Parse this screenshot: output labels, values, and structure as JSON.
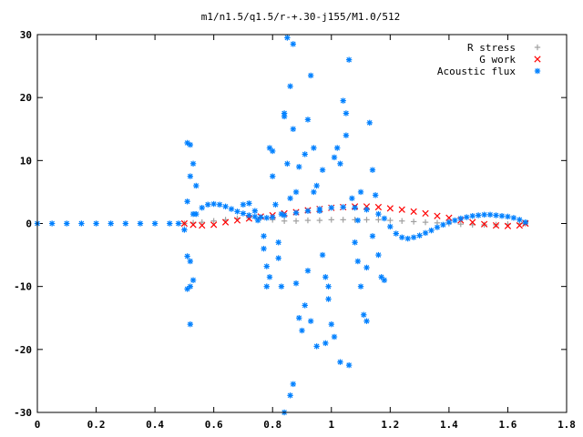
{
  "chart_data": {
    "type": "scatter",
    "title": "m1/n1.5/q1.5/r-+.30-j155/M1.0/512",
    "xlabel": "",
    "ylabel": "",
    "xlim": [
      0,
      1.8
    ],
    "ylim": [
      -30,
      30
    ],
    "x_ticks": [
      0,
      0.2,
      0.4,
      0.6,
      0.8,
      1,
      1.2,
      1.4,
      1.6,
      1.8
    ],
    "y_ticks": [
      -30,
      -20,
      -10,
      0,
      10,
      20,
      30
    ],
    "x_tick_labels": [
      "0",
      "0.2",
      "0.4",
      "0.6",
      "0.8",
      "1",
      "1.2",
      "1.4",
      "1.6",
      "1.8"
    ],
    "y_tick_labels": [
      "-30",
      "-20",
      "-10",
      "0",
      "10",
      "20",
      "30"
    ],
    "legend_position": "top-right",
    "series": [
      {
        "name": "R stress",
        "color": "#a0a0a0",
        "marker": "plus",
        "points": [
          [
            0.5,
            0.0
          ],
          [
            0.53,
            0.1
          ],
          [
            0.56,
            0.2
          ],
          [
            0.6,
            0.4
          ],
          [
            0.64,
            0.6
          ],
          [
            0.68,
            0.8
          ],
          [
            0.72,
            0.9
          ],
          [
            0.76,
            0.9
          ],
          [
            0.8,
            0.6
          ],
          [
            0.84,
            0.4
          ],
          [
            0.88,
            0.4
          ],
          [
            0.92,
            0.5
          ],
          [
            0.96,
            0.5
          ],
          [
            1.0,
            0.6
          ],
          [
            1.04,
            0.6
          ],
          [
            1.08,
            0.6
          ],
          [
            1.12,
            0.6
          ],
          [
            1.16,
            0.6
          ],
          [
            1.2,
            0.5
          ],
          [
            1.24,
            0.4
          ],
          [
            1.28,
            0.3
          ],
          [
            1.32,
            0.2
          ],
          [
            1.36,
            0.1
          ],
          [
            1.4,
            0.0
          ],
          [
            1.44,
            -0.1
          ],
          [
            1.48,
            -0.2
          ],
          [
            1.52,
            -0.2
          ],
          [
            1.56,
            -0.2
          ],
          [
            1.6,
            -0.1
          ],
          [
            1.64,
            0.0
          ],
          [
            1.66,
            0.0
          ]
        ]
      },
      {
        "name": "G work",
        "color": "#ff0000",
        "marker": "cross",
        "points": [
          [
            0.5,
            0.0
          ],
          [
            0.53,
            -0.2
          ],
          [
            0.56,
            -0.3
          ],
          [
            0.6,
            -0.2
          ],
          [
            0.64,
            0.2
          ],
          [
            0.68,
            0.5
          ],
          [
            0.72,
            0.8
          ],
          [
            0.76,
            1.1
          ],
          [
            0.8,
            1.3
          ],
          [
            0.84,
            1.6
          ],
          [
            0.88,
            1.8
          ],
          [
            0.92,
            2.1
          ],
          [
            0.96,
            2.3
          ],
          [
            1.0,
            2.5
          ],
          [
            1.04,
            2.6
          ],
          [
            1.08,
            2.7
          ],
          [
            1.12,
            2.7
          ],
          [
            1.16,
            2.6
          ],
          [
            1.2,
            2.4
          ],
          [
            1.24,
            2.2
          ],
          [
            1.28,
            1.9
          ],
          [
            1.32,
            1.6
          ],
          [
            1.36,
            1.2
          ],
          [
            1.4,
            0.9
          ],
          [
            1.44,
            0.5
          ],
          [
            1.48,
            0.2
          ],
          [
            1.52,
            -0.1
          ],
          [
            1.56,
            -0.3
          ],
          [
            1.6,
            -0.4
          ],
          [
            1.64,
            -0.3
          ],
          [
            1.66,
            0.0
          ]
        ]
      },
      {
        "name": "Acoustic flux",
        "color": "#0080ff",
        "marker": "star",
        "points": [
          [
            0.0,
            0.0
          ],
          [
            0.05,
            0.0
          ],
          [
            0.1,
            0.0
          ],
          [
            0.15,
            0.0
          ],
          [
            0.2,
            0.0
          ],
          [
            0.25,
            0.0
          ],
          [
            0.3,
            0.0
          ],
          [
            0.35,
            0.0
          ],
          [
            0.4,
            0.0
          ],
          [
            0.45,
            0.0
          ],
          [
            0.48,
            0.0
          ],
          [
            0.54,
            1.5
          ],
          [
            0.56,
            2.5
          ],
          [
            0.58,
            3.0
          ],
          [
            0.6,
            3.1
          ],
          [
            0.62,
            3.0
          ],
          [
            0.64,
            2.7
          ],
          [
            0.66,
            2.3
          ],
          [
            0.68,
            1.9
          ],
          [
            0.7,
            1.6
          ],
          [
            0.72,
            1.3
          ],
          [
            0.74,
            1.1
          ],
          [
            0.76,
            1.0
          ],
          [
            0.78,
            0.9
          ],
          [
            0.8,
            1.0
          ],
          [
            0.84,
            1.3
          ],
          [
            0.88,
            1.7
          ],
          [
            0.92,
            2.0
          ],
          [
            0.96,
            2.3
          ],
          [
            1.0,
            2.5
          ],
          [
            1.04,
            2.6
          ],
          [
            1.08,
            2.5
          ],
          [
            1.12,
            2.2
          ],
          [
            1.16,
            1.5
          ],
          [
            1.18,
            0.8
          ],
          [
            1.2,
            -0.5
          ],
          [
            1.22,
            -1.6
          ],
          [
            1.24,
            -2.2
          ],
          [
            1.26,
            -2.4
          ],
          [
            1.28,
            -2.2
          ],
          [
            1.3,
            -1.9
          ],
          [
            1.32,
            -1.5
          ],
          [
            1.34,
            -1.1
          ],
          [
            1.36,
            -0.6
          ],
          [
            1.38,
            -0.2
          ],
          [
            1.4,
            0.2
          ],
          [
            1.42,
            0.5
          ],
          [
            1.44,
            0.8
          ],
          [
            1.46,
            1.0
          ],
          [
            1.48,
            1.2
          ],
          [
            1.5,
            1.3
          ],
          [
            1.52,
            1.4
          ],
          [
            1.54,
            1.4
          ],
          [
            1.56,
            1.3
          ],
          [
            1.58,
            1.2
          ],
          [
            1.6,
            1.1
          ],
          [
            1.62,
            0.9
          ],
          [
            1.64,
            0.6
          ],
          [
            1.66,
            0.2
          ],
          [
            0.51,
            12.8
          ],
          [
            0.52,
            12.5
          ],
          [
            0.52,
            7.5
          ],
          [
            0.53,
            9.5
          ],
          [
            0.54,
            6.0
          ],
          [
            0.51,
            3.5
          ],
          [
            0.53,
            1.5
          ],
          [
            0.51,
            -5.2
          ],
          [
            0.52,
            -6.0
          ],
          [
            0.52,
            -10.0
          ],
          [
            0.53,
            -9.0
          ],
          [
            0.51,
            -10.4
          ],
          [
            0.52,
            -16.0
          ],
          [
            0.5,
            -1.0
          ],
          [
            0.7,
            3.0
          ],
          [
            0.72,
            3.2
          ],
          [
            0.74,
            2.0
          ],
          [
            0.75,
            0.5
          ],
          [
            0.77,
            -2.0
          ],
          [
            0.77,
            -4.0
          ],
          [
            0.78,
            -6.8
          ],
          [
            0.78,
            -10.0
          ],
          [
            0.79,
            -8.5
          ],
          [
            0.79,
            12.0
          ],
          [
            0.8,
            11.5
          ],
          [
            0.8,
            7.5
          ],
          [
            0.81,
            3.0
          ],
          [
            0.82,
            -3.0
          ],
          [
            0.82,
            -5.5
          ],
          [
            0.83,
            -10.0
          ],
          [
            0.84,
            17.5
          ],
          [
            0.84,
            17.0
          ],
          [
            0.85,
            9.5
          ],
          [
            0.85,
            29.5
          ],
          [
            0.86,
            21.8
          ],
          [
            0.87,
            28.5
          ],
          [
            0.87,
            15.0
          ],
          [
            0.88,
            5.0
          ],
          [
            0.88,
            -9.5
          ],
          [
            0.89,
            -15.0
          ],
          [
            0.9,
            -17.0
          ],
          [
            0.87,
            -25.5
          ],
          [
            0.86,
            -27.3
          ],
          [
            0.84,
            -30.0
          ],
          [
            0.92,
            16.5
          ],
          [
            0.93,
            23.5
          ],
          [
            0.94,
            12.0
          ],
          [
            0.95,
            6.0
          ],
          [
            0.96,
            2.0
          ],
          [
            0.97,
            -5.0
          ],
          [
            0.98,
            -8.5
          ],
          [
            0.99,
            -12.0
          ],
          [
            1.0,
            -16.0
          ],
          [
            1.01,
            -18.0
          ],
          [
            1.02,
            12.0
          ],
          [
            1.03,
            9.5
          ],
          [
            1.04,
            19.5
          ],
          [
            1.05,
            17.5
          ],
          [
            1.06,
            26.0
          ],
          [
            1.07,
            4.0
          ],
          [
            1.08,
            -3.0
          ],
          [
            1.09,
            -6.0
          ],
          [
            1.1,
            -10.0
          ],
          [
            1.11,
            -14.5
          ],
          [
            1.12,
            -15.5
          ],
          [
            1.13,
            16.0
          ],
          [
            1.14,
            8.5
          ],
          [
            1.15,
            4.5
          ],
          [
            1.16,
            -5.0
          ],
          [
            1.17,
            -8.5
          ],
          [
            1.18,
            -9.0
          ],
          [
            0.95,
            -19.5
          ],
          [
            0.98,
            -19.0
          ],
          [
            1.03,
            -22.0
          ],
          [
            1.06,
            -22.5
          ],
          [
            0.91,
            -13.0
          ],
          [
            0.93,
            -15.5
          ],
          [
            0.89,
            9.0
          ],
          [
            0.91,
            11.0
          ],
          [
            0.97,
            8.5
          ],
          [
            1.01,
            10.5
          ],
          [
            1.05,
            14.0
          ],
          [
            1.1,
            5.0
          ],
          [
            1.14,
            -2.0
          ],
          [
            1.12,
            -7.0
          ],
          [
            1.09,
            0.5
          ],
          [
            0.94,
            5.0
          ],
          [
            0.92,
            -7.5
          ],
          [
            0.99,
            -10.0
          ],
          [
            0.86,
            4.0
          ],
          [
            0.83,
            1.5
          ]
        ]
      }
    ]
  }
}
